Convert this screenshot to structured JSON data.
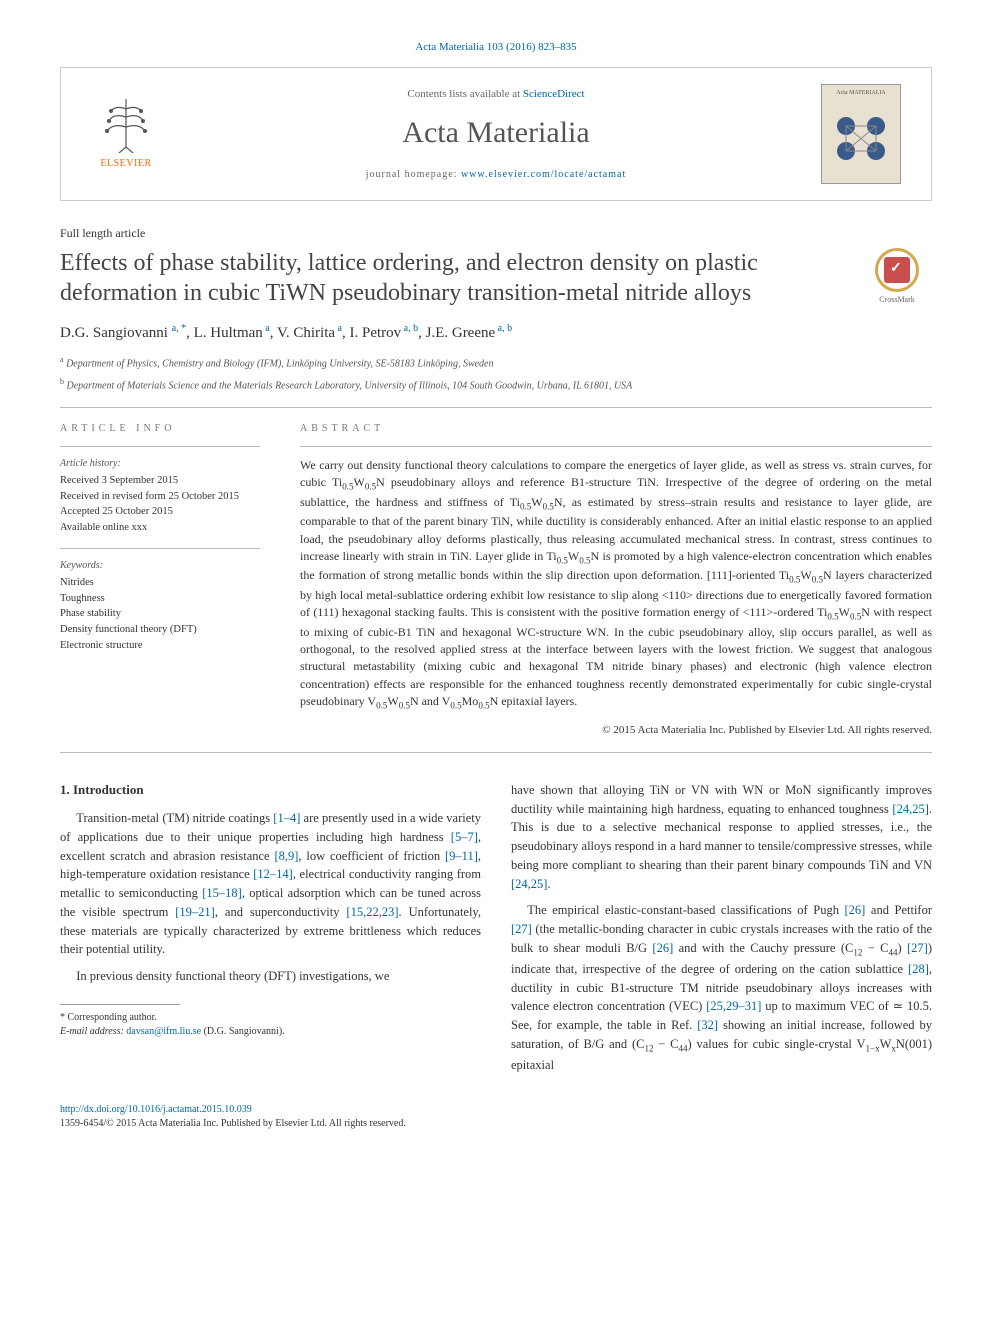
{
  "citation": "Acta Materialia 103 (2016) 823–835",
  "masthead": {
    "publisher": "ELSEVIER",
    "contents_prefix": "Contents lists available at ",
    "contents_link": "ScienceDirect",
    "journal": "Acta Materialia",
    "homepage_prefix": "journal homepage: ",
    "homepage_url": "www.elsevier.com/locate/actamat",
    "cover_label": "Acta MATERIALIA"
  },
  "article": {
    "type": "Full length article",
    "title": "Effects of phase stability, lattice ordering, and electron density on plastic deformation in cubic TiWN pseudobinary transition-metal nitride alloys",
    "crossmark": "CrossMark"
  },
  "authors_html": "D.G. Sangiovanni <sup>a, *</sup>, L. Hultman<sup> a</sup>, V. Chirita<sup> a</sup>, I. Petrov<sup> a, b</sup>, J.E. Greene<sup> a, b</sup>",
  "affiliations": [
    "a Department of Physics, Chemistry and Biology (IFM), Linköping University, SE-58183 Linköping, Sweden",
    "b Department of Materials Science and the Materials Research Laboratory, University of Illinois, 104 South Goodwin, Urbana, IL 61801, USA"
  ],
  "info": {
    "label": "ARTICLE INFO",
    "history_label": "Article history:",
    "history": [
      "Received 3 September 2015",
      "Received in revised form 25 October 2015",
      "Accepted 25 October 2015",
      "Available online xxx"
    ],
    "keywords_label": "Keywords:",
    "keywords": [
      "Nitrides",
      "Toughness",
      "Phase stability",
      "Density functional theory (DFT)",
      "Electronic structure"
    ]
  },
  "abstract": {
    "label": "ABSTRACT",
    "text_html": "We carry out density functional theory calculations to compare the energetics of layer glide, as well as stress vs. strain curves, for cubic Ti<sub>0.5</sub>W<sub>0.5</sub>N pseudobinary alloys and reference B1-structure TiN. Irrespective of the degree of ordering on the metal sublattice, the hardness and stiffness of Ti<sub>0.5</sub>W<sub>0.5</sub>N, as estimated by stress–strain results and resistance to layer glide, are comparable to that of the parent binary TiN, while ductility is considerably enhanced. After an initial elastic response to an applied load, the pseudobinary alloy deforms plastically, thus releasing accumulated mechanical stress. In contrast, stress continues to increase linearly with strain in TiN. Layer glide in Ti<sub>0.5</sub>W<sub>0.5</sub>N is promoted by a high valence-electron concentration which enables the formation of strong metallic bonds within the slip direction upon deformation. [111]-oriented Ti<sub>0.5</sub>W<sub>0.5</sub>N layers characterized by high local metal-sublattice ordering exhibit low resistance to slip along &lt;110&gt; directions due to energetically favored formation of (111) hexagonal stacking faults. This is consistent with the positive formation energy of &lt;111&gt;-ordered Ti<sub>0.5</sub>W<sub>0.5</sub>N with respect to mixing of cubic-B1 TiN and hexagonal WC-structure WN. In the cubic pseudobinary alloy, slip occurs parallel, as well as orthogonal, to the resolved applied stress at the interface between layers with the lowest friction. We suggest that analogous structural metastability (mixing cubic and hexagonal TM nitride binary phases) and electronic (high valence electron concentration) effects are responsible for the enhanced toughness recently demonstrated experimentally for cubic single-crystal pseudobinary V<sub>0.5</sub>W<sub>0.5</sub>N and V<sub>0.5</sub>Mo<sub>0.5</sub>N epitaxial layers.",
    "copyright": "© 2015 Acta Materialia Inc. Published by Elsevier Ltd. All rights reserved."
  },
  "body": {
    "heading": "1. Introduction",
    "left_paragraphs": [
      "Transition-metal (TM) nitride coatings <span class='ref'>[1–4]</span> are presently used in a wide variety of applications due to their unique properties including high hardness <span class='ref'>[5–7]</span>, excellent scratch and abrasion resistance <span class='ref'>[8,9]</span>, low coefficient of friction <span class='ref'>[9–11]</span>, high-temperature oxidation resistance <span class='ref'>[12–14]</span>, electrical conductivity ranging from metallic to semiconducting <span class='ref'>[15–18]</span>, optical adsorption which can be tuned across the visible spectrum <span class='ref'>[19–21]</span>, and superconductivity <span class='ref'>[15,22,23]</span>. Unfortunately, these materials are typically characterized by extreme brittleness which reduces their potential utility.",
      "In previous density functional theory (DFT) investigations, we"
    ],
    "right_paragraphs": [
      "have shown that alloying TiN or VN with WN or MoN significantly improves ductility while maintaining high hardness, equating to enhanced toughness <span class='ref'>[24,25]</span>. This is due to a selective mechanical response to applied stresses, i.e., the pseudobinary alloys respond in a hard manner to tensile/compressive stresses, while being more compliant to shearing than their parent binary compounds TiN and VN <span class='ref'>[24,25]</span>.",
      "The empirical elastic-constant-based classifications of Pugh <span class='ref'>[26]</span> and Pettifor <span class='ref'>[27]</span> (the metallic-bonding character in cubic crystals increases with the ratio of the bulk to shear moduli B/G <span class='ref'>[26]</span> and with the Cauchy pressure (C<sub>12</sub> − C<sub>44</sub>) <span class='ref'>[27]</span>) indicate that, irrespective of the degree of ordering on the cation sublattice <span class='ref'>[28]</span>, ductility in cubic B1-structure TM nitride pseudobinary alloys increases with valence electron concentration (VEC) <span class='ref'>[25,29–31]</span> up to maximum VEC of ≃ 10.5. See, for example, the table in Ref. <span class='ref'>[32]</span> showing an initial increase, followed by saturation, of B/G and (C<sub>12</sub> − C<sub>44</sub>) values for cubic single-crystal V<sub>1−x</sub>W<sub>x</sub>N(001) epitaxial"
    ]
  },
  "footnote": {
    "corresponding": "* Corresponding author.",
    "email_label": "E-mail address: ",
    "email": "davsan@ifm.liu.se",
    "email_name": " (D.G. Sangiovanni)."
  },
  "footer": {
    "doi": "http://dx.doi.org/10.1016/j.actamat.2015.10.039",
    "issn_line": "1359-6454/© 2015 Acta Materialia Inc. Published by Elsevier Ltd. All rights reserved."
  },
  "colors": {
    "link": "#0066a1",
    "publisher_orange": "#ff6600",
    "crossmark_ring": "#d4a84b",
    "crossmark_box": "#c94f4f",
    "rule": "#bbbbbb"
  }
}
